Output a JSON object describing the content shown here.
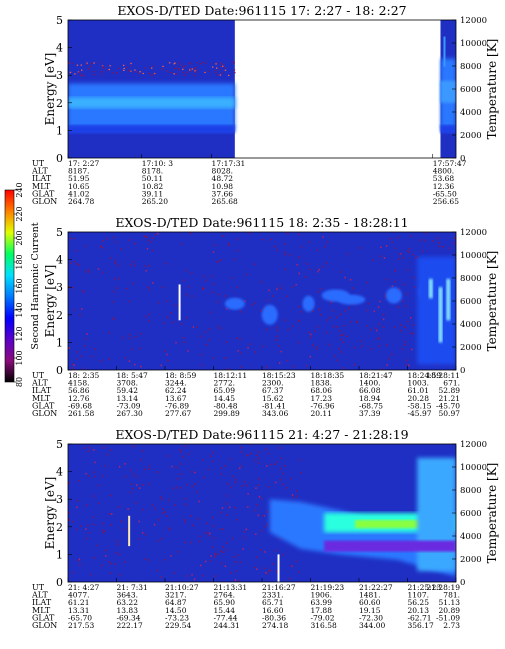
{
  "colorbar": {
    "label": "Second Harmonic Current",
    "ticks": [
      "80",
      "100",
      "120",
      "140",
      "160",
      "180",
      "200",
      "220",
      "240"
    ],
    "stops": [
      "#000000",
      "#8a0c7a",
      "#5a00c8",
      "#0000ff",
      "#0078ff",
      "#00e0ff",
      "#00ff60",
      "#e0ff00",
      "#ff8000",
      "#ff0000"
    ]
  },
  "colors": {
    "background_fill": "#1f2fc4",
    "noise": "#8a1450",
    "mid_band": "#2a78ff",
    "bright": "#2affe0",
    "hot": "#8aff40"
  },
  "chart_data": [
    {
      "type": "heatmap",
      "title": "EXOS-D/TED   Date:961115  17: 2:27 - 18: 2:27",
      "ylabel": "Energy [eV]",
      "y2label": "Temperature [K]",
      "ylim": [
        0,
        5
      ],
      "yticks": [
        "0",
        "1",
        "2",
        "3",
        "4",
        "5"
      ],
      "y2lim": [
        0,
        12000
      ],
      "y2ticks": [
        "0",
        "2000",
        "4000",
        "6000",
        "8000",
        "10000",
        "12000"
      ],
      "table_labels": [
        "UT",
        "ALT",
        "ILAT",
        "MLT",
        "GLAT",
        "GLON"
      ],
      "columns": [
        {
          "values": [
            "17: 2:27",
            "8187.",
            "51.95",
            "10.65",
            "41.02",
            "264.78"
          ]
        },
        {
          "values": [
            "17:10: 3",
            "8178.",
            "50.11",
            "10.82",
            "39.11",
            "265.20"
          ]
        },
        {
          "values": [
            "17:17:31",
            "8028.",
            "48.72",
            "10.98",
            "37.66",
            "265.68"
          ]
        },
        {
          "values": [
            "17:57:47",
            "4800.",
            "53.68",
            "12.36",
            "-65.50",
            "256.65"
          ]
        }
      ],
      "data_regions": [
        {
          "x_start": 0.0,
          "x_end": 0.43,
          "band_ev": [
            1.0,
            2.7
          ],
          "bright_ev": [
            1.8,
            2.2
          ],
          "noise_above_ev": [
            3.0,
            3.5
          ]
        },
        {
          "x_start": 0.96,
          "x_end": 1.0,
          "band_ev": [
            1.0,
            3.6
          ]
        }
      ]
    },
    {
      "type": "heatmap",
      "title": "EXOS-D/TED   Date:961115  18: 2:35 - 18:28:11",
      "ylabel": "Energy [eV]",
      "y2label": "Temperature [K]",
      "ylim": [
        0,
        5
      ],
      "yticks": [
        "0",
        "1",
        "2",
        "3",
        "4",
        "5"
      ],
      "y2lim": [
        0,
        12000
      ],
      "y2ticks": [
        "0",
        "2000",
        "4000",
        "6000",
        "8000",
        "10000",
        "12000"
      ],
      "table_labels": [
        "UT",
        "ALT",
        "ILAT",
        "MLT",
        "GLAT",
        "GLON"
      ],
      "columns": [
        {
          "values": [
            "18: 2:35",
            "4158.",
            "56.86",
            "12.76",
            "-69.68",
            "261.58"
          ]
        },
        {
          "values": [
            "18: 5:47",
            "3708.",
            "59.42",
            "13.14",
            "-73.09",
            "267.30"
          ]
        },
        {
          "values": [
            "18: 8:59",
            "3244.",
            "62.24",
            "13.67",
            "-76.89",
            "277.67"
          ]
        },
        {
          "values": [
            "18:12:11",
            "2772.",
            "65.09",
            "14.45",
            "-80.48",
            "299.89"
          ]
        },
        {
          "values": [
            "18:15:23",
            "2300.",
            "67.37",
            "15.62",
            "-81.41",
            "343.06"
          ]
        },
        {
          "values": [
            "18:18:35",
            "1838.",
            "68.06",
            "17.23",
            "-76.96",
            "20.11"
          ]
        },
        {
          "values": [
            "18:21:47",
            "1400.",
            "66.08",
            "18.94",
            "-68.75",
            "37.39"
          ]
        },
        {
          "values": [
            "18:24:59",
            "1003.",
            "61.01",
            "20.28",
            "-58.15",
            "-45.97"
          ]
        },
        {
          "values": [
            "18:28:11",
            "671.",
            "52.89",
            "21.21",
            "-45.70",
            "50.97"
          ]
        }
      ],
      "data_regions": [
        {
          "x_start": 0.0,
          "x_end": 1.0,
          "band_ev": [
            0.0,
            5.0
          ]
        }
      ]
    },
    {
      "type": "heatmap",
      "title": "EXOS-D/TED   Date:961115  21: 4:27 - 21:28:19",
      "ylabel": "Energy [eV]",
      "y2label": "Temperature [K]",
      "ylim": [
        0,
        5
      ],
      "yticks": [
        "0",
        "1",
        "2",
        "3",
        "4",
        "5"
      ],
      "y2lim": [
        0,
        12000
      ],
      "y2ticks": [
        "0",
        "2000",
        "4000",
        "6000",
        "8000",
        "10000",
        "12000"
      ],
      "table_labels": [
        "UT",
        "ALT",
        "ILAT",
        "MLT",
        "GLAT",
        "GLON"
      ],
      "columns": [
        {
          "values": [
            "21: 4:27",
            "4077.",
            "61.21",
            "13.31",
            "-65.70",
            "217.53"
          ]
        },
        {
          "values": [
            "21: 7:31",
            "3643.",
            "63.22",
            "13.83",
            "-69.34",
            "222.17"
          ]
        },
        {
          "values": [
            "21:10:27",
            "3217.",
            "64.87",
            "14.50",
            "-73.23",
            "229.54"
          ]
        },
        {
          "values": [
            "21:13:31",
            "2764.",
            "65.90",
            "15.44",
            "-77.44",
            "244.31"
          ]
        },
        {
          "values": [
            "21:16:27",
            "2331.",
            "65.71",
            "16.60",
            "-80.36",
            "274.18"
          ]
        },
        {
          "values": [
            "21:19:23",
            "1906.",
            "63.99",
            "17.88",
            "-79.02",
            "316.58"
          ]
        },
        {
          "values": [
            "21:22:27",
            "1481.",
            "60.60",
            "19.15",
            "-72.30",
            "344.00"
          ]
        },
        {
          "values": [
            "21:25:23",
            "1107.",
            "56.25",
            "20.13",
            "-62.71",
            "356.17"
          ]
        },
        {
          "values": [
            "21:28:19",
            "781.",
            "51.13",
            "20.89",
            "-51.09",
            "2.73"
          ]
        }
      ],
      "data_regions": [
        {
          "x_start": 0.0,
          "x_end": 1.0,
          "band_ev": [
            0.0,
            5.0
          ]
        }
      ]
    }
  ]
}
